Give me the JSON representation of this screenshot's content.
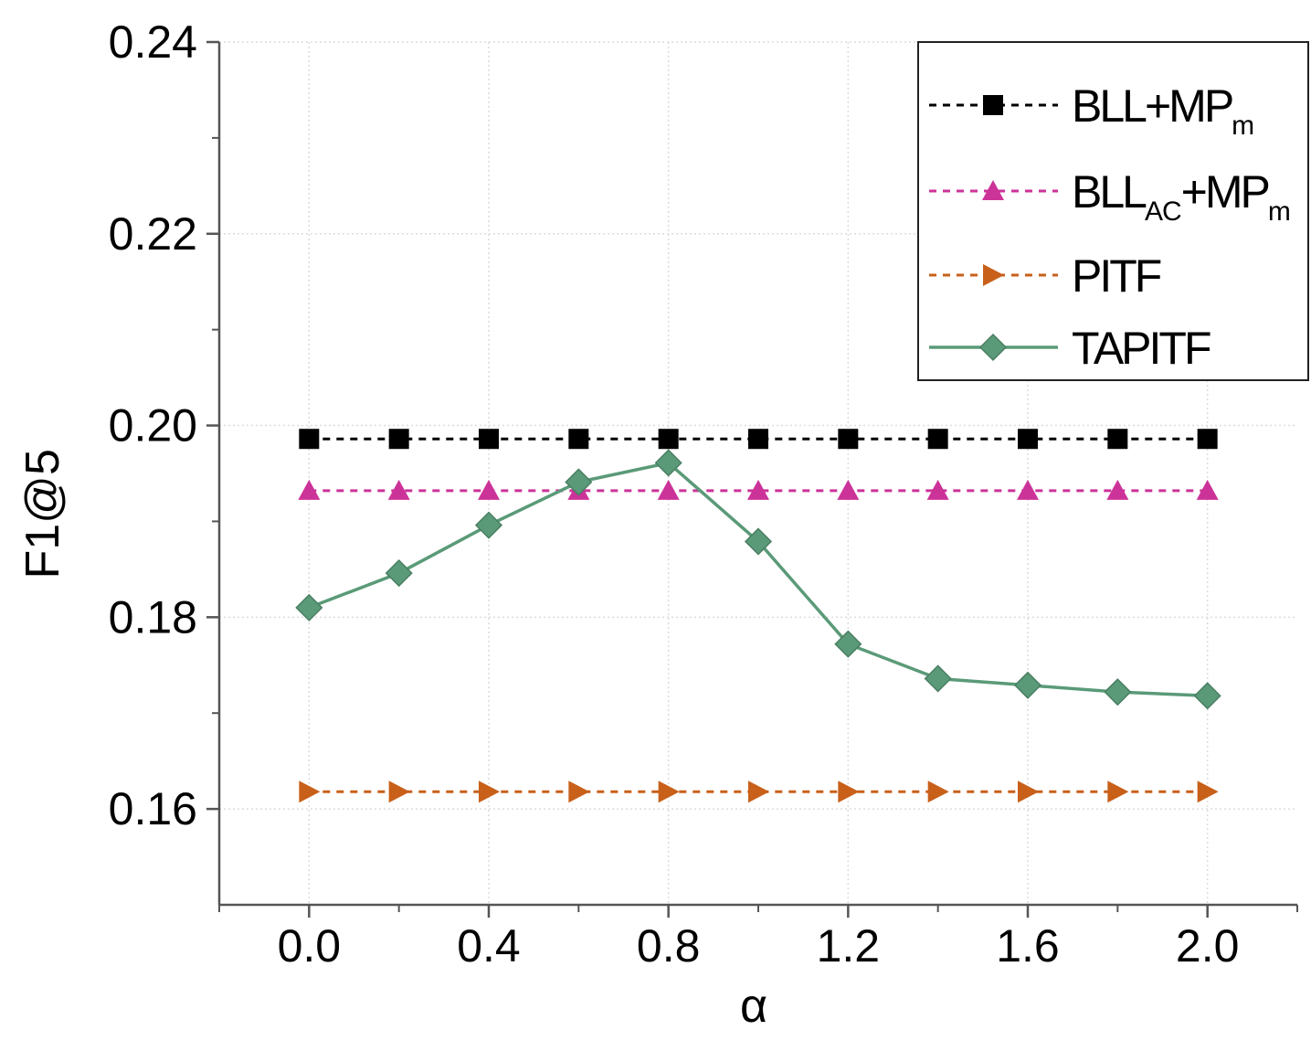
{
  "chart_data": {
    "type": "line",
    "title": "",
    "xlabel": "α",
    "ylabel": "F1@5",
    "xlim": [
      -0.2,
      2.2
    ],
    "ylim": [
      0.15,
      0.24
    ],
    "x": [
      0.0,
      0.2,
      0.4,
      0.6,
      0.8,
      1.0,
      1.2,
      1.4,
      1.6,
      1.8,
      2.0
    ],
    "x_ticks": [
      "0.0",
      "0.4",
      "0.8",
      "1.2",
      "1.6",
      "2.0"
    ],
    "x_tick_values": [
      0.0,
      0.4,
      0.8,
      1.2,
      1.6,
      2.0
    ],
    "y_ticks": [
      "0.16",
      "0.18",
      "0.20",
      "0.22",
      "0.24"
    ],
    "y_tick_values": [
      0.16,
      0.18,
      0.2,
      0.22,
      0.24
    ],
    "grid": true,
    "legend_position": "top-right",
    "series": [
      {
        "name": "BLL+MPm",
        "legend_main": "BLL+MP",
        "legend_sub": "m",
        "color": "#000000",
        "marker": "square",
        "line": "dashed",
        "values": [
          0.1986,
          0.1986,
          0.1986,
          0.1986,
          0.1986,
          0.1986,
          0.1986,
          0.1986,
          0.1986,
          0.1986,
          0.1986
        ]
      },
      {
        "name": "BLLAC+MPm",
        "legend_main": "BLL",
        "legend_sub": "AC",
        "legend_main2": "+MP",
        "legend_sub2": "m",
        "color": "#cc3399",
        "marker": "triangle-up",
        "line": "dashed",
        "values": [
          0.1932,
          0.1932,
          0.1932,
          0.1932,
          0.1932,
          0.1932,
          0.1932,
          0.1932,
          0.1932,
          0.1932,
          0.1932
        ]
      },
      {
        "name": "PITF",
        "legend_main": "PITF",
        "color": "#c8601a",
        "marker": "triangle-right",
        "line": "dashed",
        "values": [
          0.1618,
          0.1618,
          0.1618,
          0.1618,
          0.1618,
          0.1618,
          0.1618,
          0.1618,
          0.1618,
          0.1618,
          0.1618
        ]
      },
      {
        "name": "TAPITF",
        "legend_main": "TAPITF",
        "color": "#5a9a78",
        "marker": "diamond",
        "line": "solid",
        "values": [
          0.181,
          0.1846,
          0.1896,
          0.1941,
          0.1961,
          0.1879,
          0.1772,
          0.1736,
          0.1729,
          0.1722,
          0.1718
        ]
      }
    ]
  }
}
